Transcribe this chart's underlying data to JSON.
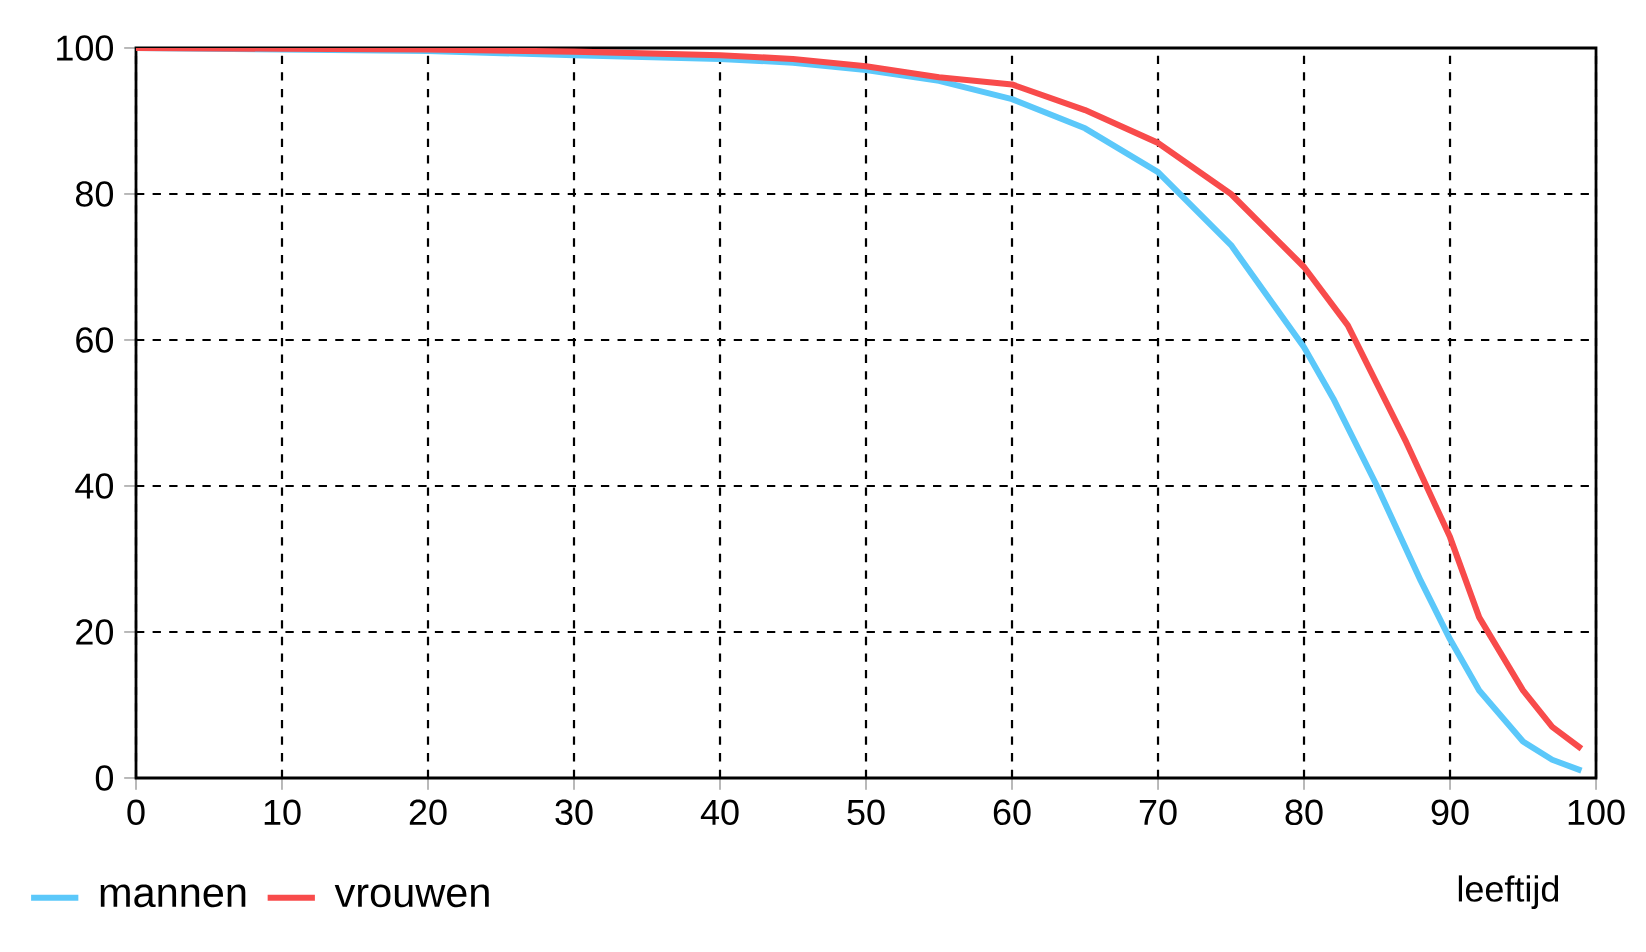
{
  "chart_data": {
    "type": "line",
    "xlabel": "leeftijd",
    "xlim": [
      0,
      100
    ],
    "ylim": [
      0,
      100
    ],
    "xticks": [
      0,
      10,
      20,
      30,
      40,
      50,
      60,
      70,
      80,
      90,
      100
    ],
    "yticks": [
      0,
      20,
      40,
      60,
      80,
      100
    ],
    "grid": true,
    "legend": "bottom left",
    "marker": "none",
    "line_style": "solid",
    "series": [
      {
        "name": "mannen",
        "color": "#5bc8fa",
        "x": [
          0,
          10,
          20,
          30,
          40,
          45,
          50,
          55,
          60,
          65,
          70,
          75,
          80,
          82,
          85,
          88,
          90,
          92,
          95,
          97,
          99
        ],
        "values": [
          100,
          99.8,
          99.6,
          99,
          98.5,
          98,
          97,
          95.5,
          93,
          89,
          83,
          73,
          59,
          52,
          40,
          27,
          19,
          12,
          5,
          2.5,
          1
        ]
      },
      {
        "name": "vrouwen",
        "color": "#f84b4b",
        "x": [
          0,
          10,
          20,
          30,
          40,
          45,
          50,
          55,
          60,
          65,
          70,
          75,
          78,
          80,
          83,
          85,
          87,
          90,
          92,
          95,
          97,
          99
        ],
        "values": [
          100,
          99.9,
          99.8,
          99.5,
          99,
          98.5,
          97.5,
          96,
          95,
          91.5,
          87,
          80,
          74,
          70,
          62,
          54,
          46,
          33,
          22,
          12,
          7,
          4
        ]
      }
    ]
  }
}
